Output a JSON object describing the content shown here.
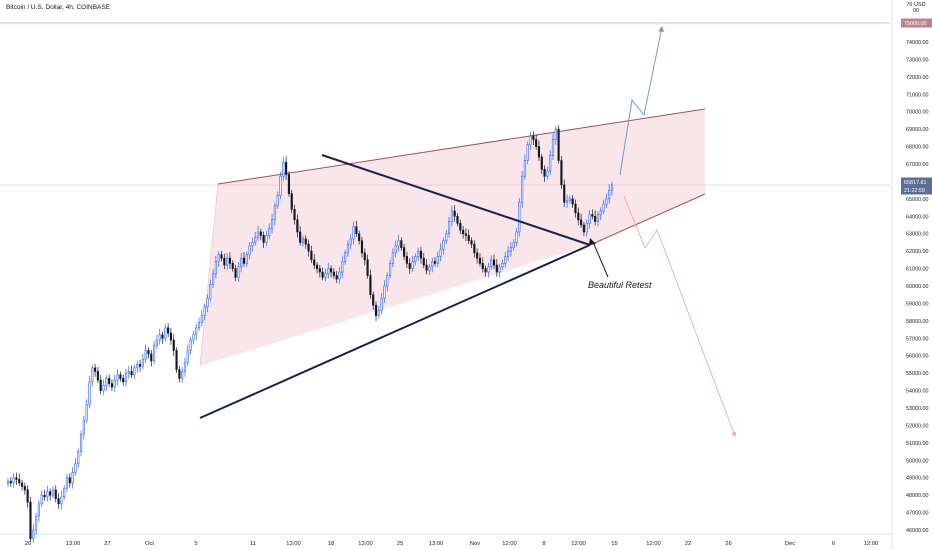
{
  "symbol": "Bitcoin / U.S. Dollar, 4h, COINBASE",
  "colors": {
    "accent": "#2962ff",
    "candle_up": "#2962ff",
    "candle_down": "#131722",
    "wedge_fill": "#f7e2e6",
    "wedge_line": "#a05060",
    "trend": "#1c2250",
    "target_line": "#e8a0a8",
    "proj_up": "#7d95c8",
    "proj_down": "#eaa2a2",
    "price_tag": "#5e6d96"
  },
  "annotation": "Beautiful Retest",
  "chart_data": {
    "type": "candlestick",
    "ylabel": "76 USD 00",
    "ylim": [
      46000,
      76300
    ],
    "y_ticks": [
      46000,
      47000,
      48000,
      49000,
      50000,
      51000,
      52000,
      53000,
      54000,
      55000,
      56000,
      57000,
      58000,
      59000,
      60000,
      61000,
      62000,
      63000,
      64000,
      65000,
      66000,
      67000,
      68000,
      69000,
      70000,
      71000,
      72000,
      73000,
      74000
    ],
    "y_tick_labels": [
      "46000.00",
      "47000.00",
      "48000.00",
      "49000.00",
      "50000.00",
      "51000.00",
      "52000.00",
      "53000.00",
      "54000.00",
      "55000.00",
      "56000.00",
      "57000.00",
      "58000.00",
      "59000.00",
      "60000.00",
      "61000.00",
      "62000.00",
      "63000.00",
      "64000.00",
      "65000.00",
      "66000.00",
      "67000.00",
      "68000.00",
      "69000.00",
      "70000.00",
      "71000.00",
      "72000.00",
      "73000.00",
      "74000.00"
    ],
    "highlight_levels": [
      {
        "label": "75000.00",
        "value": 75000,
        "kind": "target"
      },
      {
        "label": "65817.81",
        "value": 65817.81,
        "kind": "last-price"
      },
      {
        "label": "21:22:59",
        "value": 65500,
        "kind": "countdown"
      }
    ],
    "x_ticks": [
      {
        "label": "20",
        "t": 0.8
      },
      {
        "label": "13:00",
        "t": 3.8
      },
      {
        "label": "27",
        "t": 6.1
      },
      {
        "label": "Oct",
        "t": 8.9
      },
      {
        "label": "5",
        "t": 12.0
      },
      {
        "label": "11",
        "t": 15.8
      },
      {
        "label": "13:00",
        "t": 18.5
      },
      {
        "label": "18",
        "t": 21.0
      },
      {
        "label": "13:00",
        "t": 23.3
      },
      {
        "label": "25",
        "t": 25.6
      },
      {
        "label": "13:00",
        "t": 28.0
      },
      {
        "label": "Nov",
        "t": 30.6
      },
      {
        "label": "12:00",
        "t": 32.9
      },
      {
        "label": "8",
        "t": 35.2
      },
      {
        "label": "12:00",
        "t": 37.5
      },
      {
        "label": "15",
        "t": 39.9
      },
      {
        "label": "12:00",
        "t": 42.5
      },
      {
        "label": "22",
        "t": 44.8
      },
      {
        "label": "26",
        "t": 47.5
      },
      {
        "label": "Dec",
        "t": 51.6
      },
      {
        "label": "6",
        "t": 54.5
      },
      {
        "label": "12:00",
        "t": 57.0
      }
    ],
    "series": [
      {
        "name": "BTCUSD",
        "values": [
          48800,
          48700,
          49000,
          48900,
          48700,
          48500,
          48300,
          47600,
          45500,
          46000,
          46800,
          47500,
          48000,
          47900,
          48200,
          48000,
          48300,
          47800,
          47500,
          47900,
          48400,
          49000,
          48700,
          49300,
          49800,
          50500,
          51500,
          52300,
          53200,
          54500,
          55300,
          55100,
          54600,
          54000,
          54300,
          54700,
          54400,
          54200,
          54600,
          54900,
          54700,
          54500,
          55000,
          55100,
          54900,
          55300,
          55500,
          55400,
          55800,
          56300,
          56100,
          55700,
          56600,
          56900,
          57200,
          57000,
          57600,
          57300,
          56900,
          56300,
          55200,
          54700,
          55100,
          55600,
          56300,
          56900,
          57200,
          57600,
          57900,
          58300,
          58800,
          59300,
          60100,
          60700,
          61400,
          61800,
          61600,
          61200,
          61600,
          61300,
          61000,
          60500,
          61100,
          61600,
          61300,
          61800,
          62300,
          62500,
          62800,
          63100,
          62900,
          62500,
          62900,
          63300,
          63800,
          64600,
          65200,
          66300,
          67100,
          66400,
          65300,
          64400,
          63800,
          63100,
          62500,
          62700,
          62400,
          62000,
          61500,
          61200,
          61000,
          60800,
          60500,
          60700,
          61000,
          60800,
          60600,
          60400,
          60800,
          61400,
          61900,
          62400,
          62700,
          63400,
          63000,
          62600,
          61900,
          61500,
          60600,
          59500,
          58900,
          58300,
          58600,
          59300,
          60000,
          60600,
          61300,
          61900,
          62300,
          62600,
          62200,
          61700,
          61300,
          61000,
          61400,
          61700,
          62000,
          61600,
          61200,
          60900,
          61100,
          61400,
          61300,
          61700,
          62100,
          62600,
          63000,
          63700,
          64300,
          64000,
          63600,
          63200,
          63000,
          62900,
          62600,
          62400,
          61900,
          61600,
          61300,
          61000,
          60800,
          61100,
          61500,
          61200,
          60800,
          61100,
          61300,
          61700,
          62000,
          62200,
          62500,
          63100,
          64800,
          66300,
          67200,
          68100,
          68600,
          68400,
          68000,
          67400,
          66700,
          66300,
          66600,
          67500,
          68400,
          69000,
          67200,
          65800,
          64800,
          64900,
          65000,
          64700,
          64200,
          63800,
          63500,
          63100,
          63600,
          64100,
          64000,
          63700,
          64100,
          64300,
          64700,
          65000,
          65500,
          65800
        ]
      }
    ]
  }
}
